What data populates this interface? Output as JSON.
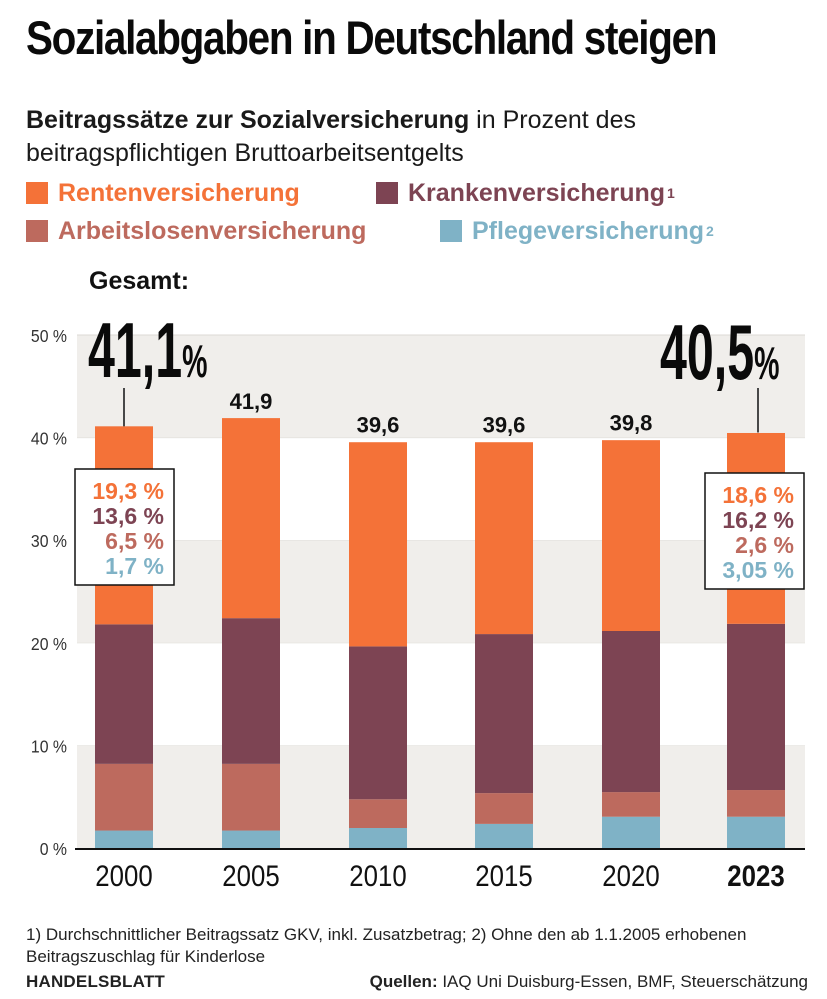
{
  "header": {
    "title": "Sozialabgaben in Deutschland steigen",
    "subtitle_bold": "Beitragssätze zur Sozialversicherung",
    "subtitle_rest": " in Prozent des beitragspflichtigen Bruttoarbeitsentgelts"
  },
  "legend": [
    {
      "label": "Rentenversicherung",
      "sup": "",
      "color": "#f47238"
    },
    {
      "label": "Krankenversicherung",
      "sup": "1",
      "color": "#7d4453"
    },
    {
      "label": "Arbeitslosenversicherung",
      "sup": "",
      "color": "#bd6a5e"
    },
    {
      "label": "Pflegeversicherung",
      "sup": "2",
      "color": "#7fb2c6"
    }
  ],
  "chart_data": {
    "type": "bar",
    "stacked": true,
    "title": "Beitragssätze zur Sozialversicherung",
    "xlabel": "",
    "ylabel": "Prozent",
    "ylim": [
      0,
      50
    ],
    "yticks": [
      0,
      10,
      20,
      30,
      40,
      50
    ],
    "ytick_labels": [
      "0 %",
      "10 %",
      "20 %",
      "30 %",
      "40 %",
      "50 %"
    ],
    "categories": [
      "2000",
      "2005",
      "2010",
      "2015",
      "2020",
      "2023"
    ],
    "highlight_category": "2023",
    "series": [
      {
        "name": "Pflegeversicherung",
        "color": "#7fb2c6",
        "values": [
          1.7,
          1.7,
          1.95,
          2.35,
          3.05,
          3.05
        ]
      },
      {
        "name": "Arbeitslosenversicherung",
        "color": "#bd6a5e",
        "values": [
          6.5,
          6.5,
          2.8,
          3.0,
          2.4,
          2.6
        ]
      },
      {
        "name": "Krankenversicherung",
        "color": "#7d4453",
        "values": [
          13.6,
          14.2,
          14.9,
          15.5,
          15.7,
          16.2
        ]
      },
      {
        "name": "Rentenversicherung",
        "color": "#f47238",
        "values": [
          19.3,
          19.5,
          19.9,
          18.7,
          18.6,
          18.6
        ]
      }
    ],
    "totals": [
      41.1,
      41.9,
      39.6,
      39.6,
      39.8,
      40.5
    ],
    "total_labels": [
      "",
      "41,9",
      "39,6",
      "39,6",
      "39,8",
      ""
    ],
    "annotations": {
      "gesamt_label": "Gesamt:",
      "first": {
        "category": "2000",
        "big_value": "41,1",
        "unit": "%",
        "breakdown": [
          "19,3 %",
          "13,6 %",
          "6,5 %",
          "1,7 %"
        ]
      },
      "last": {
        "category": "2023",
        "big_value": "40,5",
        "unit": "%",
        "breakdown": [
          "18,6 %",
          "16,2 %",
          "2,6 %",
          "3,05 %"
        ]
      }
    },
    "grid": "alternating bands",
    "legend_position": "top"
  },
  "footnote": "1) Durchschnittlicher Beitragssatz GKV, inkl. Zusatzbetrag; 2) Ohne den ab 1.1.2005 erhobenen Beitragszuschlag für Kinderlose",
  "footer": {
    "brand": "HANDELSBLATT",
    "sources_label": "Quellen:",
    "sources": " IAQ Uni Duisburg-Essen, BMF, Steuerschätzung"
  }
}
